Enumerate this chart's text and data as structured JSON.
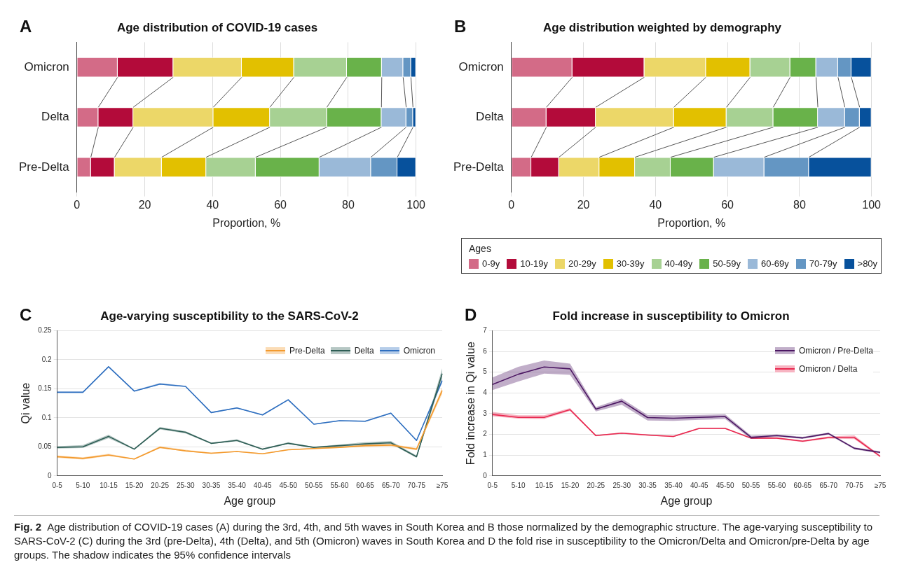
{
  "chart_data": [
    {
      "type": "bar",
      "orientation": "horizontal",
      "stacked": true,
      "title": "Age distribution of COVID-19 cases",
      "xlabel": "Proportion, %",
      "annotations": [
        "A"
      ],
      "categories": [
        "Omicron",
        "Delta",
        "Pre-Delta"
      ],
      "series": [
        {
          "color": "#d36b87",
          "values": [
            12.0,
            6.3,
            4.1
          ]
        },
        {
          "color": "#b30b3a",
          "values": [
            16.4,
            10.3,
            7.0
          ]
        },
        {
          "color": "#ecd768",
          "values": [
            20.2,
            23.6,
            13.9
          ]
        },
        {
          "color": "#e2c000",
          "values": [
            15.4,
            16.7,
            13.1
          ]
        },
        {
          "color": "#a7d193",
          "values": [
            15.6,
            16.8,
            14.6
          ]
        },
        {
          "color": "#69b24a",
          "values": [
            10.3,
            16.1,
            18.8
          ]
        },
        {
          "color": "#9ab9d8",
          "values": [
            6.3,
            7.3,
            15.2
          ]
        },
        {
          "color": "#6496c3",
          "values": [
            2.3,
            2.0,
            7.8
          ]
        },
        {
          "color": "#07519c",
          "values": [
            1.5,
            0.9,
            5.5
          ]
        }
      ],
      "xlim": [
        0,
        100
      ],
      "xticks": [
        0,
        20,
        40,
        60,
        80,
        100
      ],
      "grid": "x",
      "legend": false
    },
    {
      "type": "bar",
      "orientation": "horizontal",
      "stacked": true,
      "title": "Age distribution weighted by demography",
      "xlabel": "Proportion, %",
      "legend_title": "Ages",
      "annotations": [
        "B"
      ],
      "categories": [
        "Omicron",
        "Delta",
        "Pre-Delta"
      ],
      "series": [
        {
          "name": "0-9y",
          "color": "#d36b87",
          "values": [
            16.9,
            9.7,
            5.5
          ]
        },
        {
          "name": "10-19y",
          "color": "#b30b3a",
          "values": [
            20.0,
            13.7,
            7.7
          ]
        },
        {
          "name": "20-29y",
          "color": "#ecd768",
          "values": [
            17.1,
            21.7,
            11.2
          ]
        },
        {
          "name": "30-39y",
          "color": "#e2c000",
          "values": [
            12.3,
            14.6,
            9.9
          ]
        },
        {
          "name": "40-49y",
          "color": "#a7d193",
          "values": [
            11.1,
            13.0,
            9.9
          ]
        },
        {
          "name": "50-59y",
          "color": "#69b24a",
          "values": [
            7.2,
            12.4,
            12.0
          ]
        },
        {
          "name": "60-69y",
          "color": "#9ab9d8",
          "values": [
            6.1,
            7.5,
            14.0
          ]
        },
        {
          "name": "70-79y",
          "color": "#6496c3",
          "values": [
            3.7,
            4.1,
            12.4
          ]
        },
        {
          "name": ">80y",
          "color": "#07519c",
          "values": [
            5.6,
            3.3,
            17.4
          ]
        }
      ],
      "xlim": [
        0,
        100
      ],
      "xticks": [
        0,
        20,
        40,
        60,
        80,
        100
      ],
      "grid": "x",
      "legend": "bottom"
    },
    {
      "type": "line",
      "title": "Age-varying susceptibility to the SARS-CoV-2",
      "xlabel": "Age group",
      "ylabel": "Qi value",
      "annotations": [
        "C"
      ],
      "categories": [
        "0-5",
        "5-10",
        "10-15",
        "15-20",
        "20-25",
        "25-30",
        "30-35",
        "35-40",
        "40-45",
        "45-50",
        "50-55",
        "55-60",
        "60-65",
        "65-70",
        "70-75",
        "≥75"
      ],
      "series": [
        {
          "name": "Pre-Delta",
          "color": "#f39a2e",
          "values": [
            0.033,
            0.03,
            0.036,
            0.029,
            0.049,
            0.043,
            0.039,
            0.042,
            0.038,
            0.045,
            0.047,
            0.049,
            0.052,
            0.053,
            0.046,
            0.147
          ],
          "lower": [
            0.031,
            0.028,
            0.034,
            0.028,
            0.048,
            0.042,
            0.038,
            0.041,
            0.037,
            0.044,
            0.046,
            0.048,
            0.05,
            0.051,
            0.044,
            0.141
          ],
          "upper": [
            0.035,
            0.032,
            0.038,
            0.03,
            0.051,
            0.045,
            0.04,
            0.043,
            0.039,
            0.046,
            0.048,
            0.05,
            0.054,
            0.055,
            0.048,
            0.152
          ]
        },
        {
          "name": "Delta",
          "color": "#2e5e55",
          "values": [
            0.049,
            0.05,
            0.068,
            0.046,
            0.082,
            0.075,
            0.056,
            0.061,
            0.046,
            0.056,
            0.049,
            0.052,
            0.055,
            0.057,
            0.033,
            0.176
          ],
          "lower": [
            0.047,
            0.048,
            0.065,
            0.045,
            0.08,
            0.073,
            0.055,
            0.06,
            0.045,
            0.055,
            0.048,
            0.05,
            0.053,
            0.055,
            0.031,
            0.168
          ],
          "upper": [
            0.051,
            0.053,
            0.071,
            0.047,
            0.084,
            0.077,
            0.057,
            0.063,
            0.047,
            0.058,
            0.05,
            0.054,
            0.058,
            0.06,
            0.035,
            0.185
          ]
        },
        {
          "name": "Omicron",
          "color": "#2f6fc0",
          "values": [
            0.144,
            0.144,
            0.188,
            0.146,
            0.158,
            0.154,
            0.109,
            0.117,
            0.105,
            0.131,
            0.089,
            0.095,
            0.094,
            0.108,
            0.061,
            0.164
          ],
          "lower": [
            0.143,
            0.143,
            0.187,
            0.145,
            0.157,
            0.153,
            0.108,
            0.116,
            0.104,
            0.13,
            0.088,
            0.094,
            0.093,
            0.107,
            0.06,
            0.16
          ],
          "upper": [
            0.145,
            0.145,
            0.189,
            0.147,
            0.16,
            0.155,
            0.11,
            0.118,
            0.106,
            0.132,
            0.09,
            0.096,
            0.095,
            0.109,
            0.062,
            0.168
          ]
        }
      ],
      "ylim": [
        0,
        0.25
      ],
      "yticks": [
        0,
        0.05,
        0.1,
        0.15,
        0.2,
        0.25
      ],
      "grid": "y",
      "legend": "top right"
    },
    {
      "type": "line",
      "title": "Fold increase in susceptibility to Omicron",
      "xlabel": "Age group",
      "ylabel": "Fold increase in Qi value",
      "annotations": [
        "D",
        "Fig. 2",
        "Age distribution of COVID-19 cases (A) during the 3rd, 4th, and 5th waves in South Korea and B those normalized by the demographic structure. The age-varying susceptibility to SARS-CoV-2 (C) during the 3rd (pre-Delta), 4th (Delta), and 5th (Omicron) waves in South Korea and D the fold rise in susceptibility to the Omicron/Delta and Omicron/pre-Delta by age groups. The shadow indicates the 95% confidence intervals"
      ],
      "categories": [
        "0-5",
        "5-10",
        "10-15",
        "15-20",
        "20-25",
        "25-30",
        "30-35",
        "35-40",
        "40-45",
        "45-50",
        "50-55",
        "55-60",
        "60-65",
        "65-70",
        "70-75",
        "≥75"
      ],
      "series": [
        {
          "name": "Omicron / Pre-Delta",
          "color": "#4c1763",
          "values": [
            4.41,
            4.9,
            5.25,
            5.16,
            3.22,
            3.6,
            2.81,
            2.78,
            2.82,
            2.86,
            1.86,
            1.94,
            1.83,
            2.04,
            1.33,
            1.13
          ],
          "lower": [
            4.14,
            4.55,
            4.93,
            4.87,
            3.11,
            3.43,
            2.67,
            2.65,
            2.7,
            2.74,
            1.78,
            1.89,
            1.78,
            1.99,
            1.28,
            1.08
          ],
          "upper": [
            4.74,
            5.26,
            5.56,
            5.41,
            3.32,
            3.73,
            2.94,
            2.92,
            2.94,
            2.97,
            1.94,
            1.99,
            1.88,
            2.09,
            1.38,
            1.18
          ]
        },
        {
          "name": "Omicron / Delta",
          "color": "#e8284f",
          "values": [
            2.96,
            2.82,
            2.82,
            3.19,
            1.94,
            2.06,
            1.97,
            1.9,
            2.29,
            2.29,
            1.82,
            1.82,
            1.67,
            1.85,
            1.85,
            0.94
          ],
          "lower": [
            2.87,
            2.76,
            2.74,
            3.13,
            1.91,
            2.03,
            1.94,
            1.87,
            2.26,
            2.26,
            1.78,
            1.78,
            1.63,
            1.8,
            1.77,
            0.9
          ],
          "upper": [
            3.08,
            2.92,
            2.92,
            3.27,
            1.97,
            2.09,
            2.0,
            1.93,
            2.32,
            2.32,
            1.86,
            1.86,
            1.71,
            1.9,
            1.95,
            0.98
          ]
        }
      ],
      "ylim": [
        0,
        7
      ],
      "yticks": [
        0,
        1,
        2,
        3,
        4,
        5,
        6,
        7
      ],
      "grid": "y",
      "legend": "top right"
    }
  ]
}
